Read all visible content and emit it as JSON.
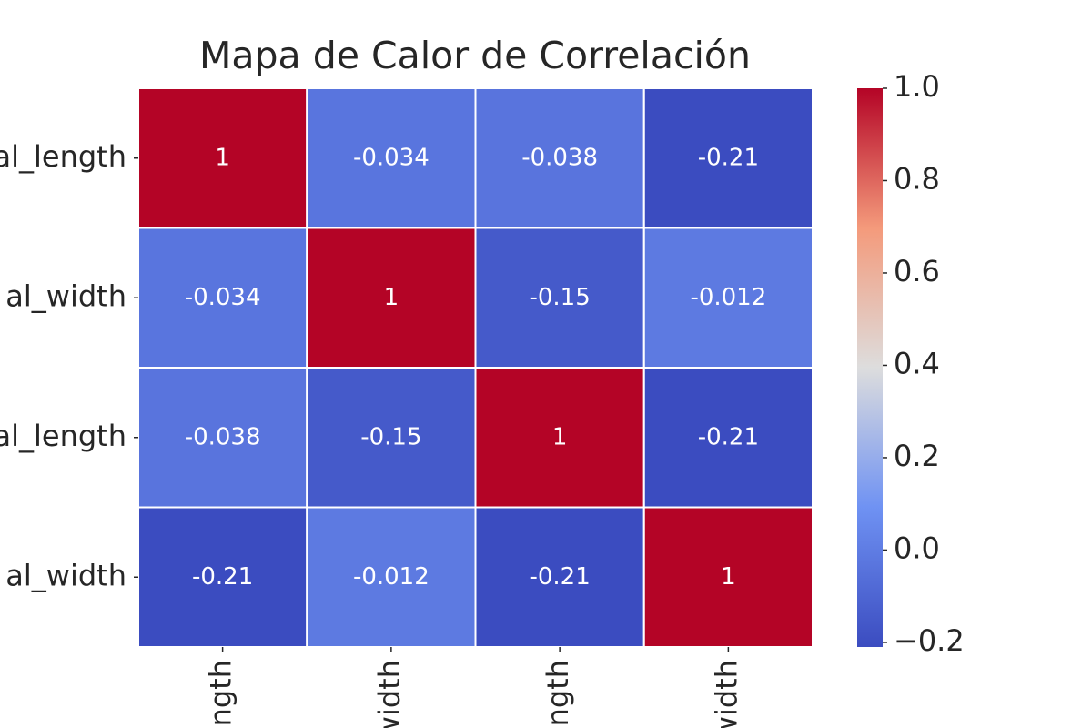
{
  "chart_data": {
    "type": "heatmap",
    "title": "Mapa de Calor de Correlación",
    "x_categories": [
      "ngth",
      "width",
      "ngth",
      "width"
    ],
    "y_categories": [
      "al_length",
      "al_width",
      "al_length",
      "al_width"
    ],
    "values": [
      [
        1,
        -0.034,
        -0.038,
        -0.21
      ],
      [
        -0.034,
        1,
        -0.15,
        -0.012
      ],
      [
        -0.038,
        -0.15,
        1,
        -0.21
      ],
      [
        -0.21,
        -0.012,
        -0.21,
        1
      ]
    ],
    "colormap": "coolwarm",
    "clim": [
      -0.21,
      1.0
    ],
    "cticks": [
      {
        "value": -0.2,
        "label": "−0.2"
      },
      {
        "value": 0.0,
        "label": "0.0"
      },
      0.2,
      0.4,
      0.6,
      0.8,
      {
        "value": 1.0,
        "label": "1.0"
      }
    ]
  }
}
